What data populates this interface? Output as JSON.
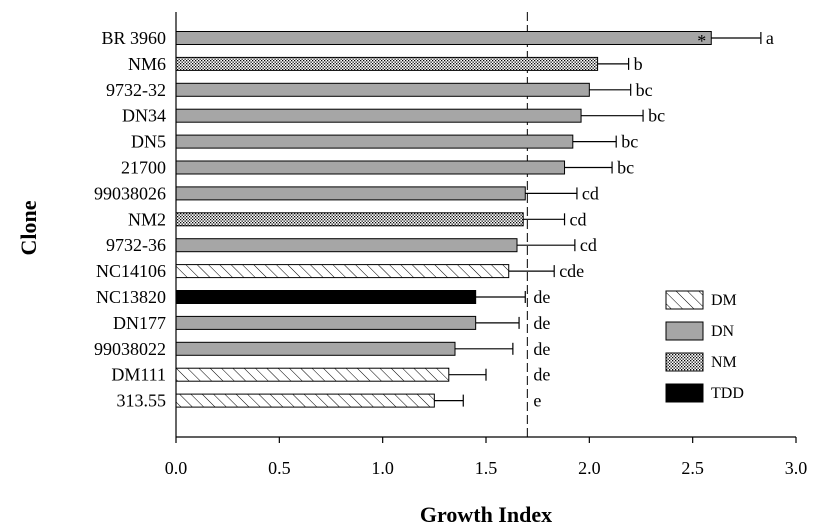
{
  "chart_data": {
    "type": "bar",
    "orientation": "horizontal",
    "xlabel": "Growth Index",
    "ylabel": "Clone",
    "xlim": [
      0.0,
      3.0
    ],
    "xticks": [
      "0.0",
      "0.5",
      "1.0",
      "1.5",
      "2.0",
      "2.5",
      "3.0"
    ],
    "reference_line": 1.7,
    "grid": false,
    "legend_position": "right",
    "legend": [
      {
        "key": "DM",
        "label": "DM",
        "fill": "hatch"
      },
      {
        "key": "DN",
        "label": "DN",
        "fill": "#a6a6a6"
      },
      {
        "key": "NM",
        "label": "NM",
        "fill": "dots"
      },
      {
        "key": "TDD",
        "label": "TDD",
        "fill": "#000000"
      }
    ],
    "bars": [
      {
        "clone": "BR 3960",
        "group": "DN",
        "value": 2.59,
        "error": 0.24,
        "letters": "a",
        "marker": "*"
      },
      {
        "clone": "NM6",
        "group": "NM",
        "value": 2.04,
        "error": 0.15,
        "letters": "b",
        "marker": ""
      },
      {
        "clone": "9732-32",
        "group": "DN",
        "value": 2.0,
        "error": 0.2,
        "letters": "bc",
        "marker": ""
      },
      {
        "clone": "DN34",
        "group": "DN",
        "value": 1.96,
        "error": 0.3,
        "letters": "bc",
        "marker": ""
      },
      {
        "clone": "DN5",
        "group": "DN",
        "value": 1.92,
        "error": 0.21,
        "letters": "bc",
        "marker": ""
      },
      {
        "clone": "21700",
        "group": "DN",
        "value": 1.88,
        "error": 0.23,
        "letters": "bc",
        "marker": ""
      },
      {
        "clone": "99038026",
        "group": "DN",
        "value": 1.69,
        "error": 0.25,
        "letters": "cd",
        "marker": ""
      },
      {
        "clone": "NM2",
        "group": "NM",
        "value": 1.68,
        "error": 0.2,
        "letters": "cd",
        "marker": ""
      },
      {
        "clone": "9732-36",
        "group": "DN",
        "value": 1.65,
        "error": 0.28,
        "letters": "cd",
        "marker": ""
      },
      {
        "clone": "NC14106",
        "group": "DM",
        "value": 1.61,
        "error": 0.22,
        "letters": "cde",
        "marker": ""
      },
      {
        "clone": "NC13820",
        "group": "TDD",
        "value": 1.45,
        "error": 0.24,
        "letters": "de",
        "marker": ""
      },
      {
        "clone": "DN177",
        "group": "DN",
        "value": 1.45,
        "error": 0.21,
        "letters": "de",
        "marker": ""
      },
      {
        "clone": "99038022",
        "group": "DN",
        "value": 1.35,
        "error": 0.28,
        "letters": "de",
        "marker": ""
      },
      {
        "clone": "DM111",
        "group": "DM",
        "value": 1.32,
        "error": 0.18,
        "letters": "de",
        "marker": ""
      },
      {
        "clone": "313.55",
        "group": "DM",
        "value": 1.25,
        "error": 0.14,
        "letters": "e",
        "marker": ""
      }
    ]
  }
}
